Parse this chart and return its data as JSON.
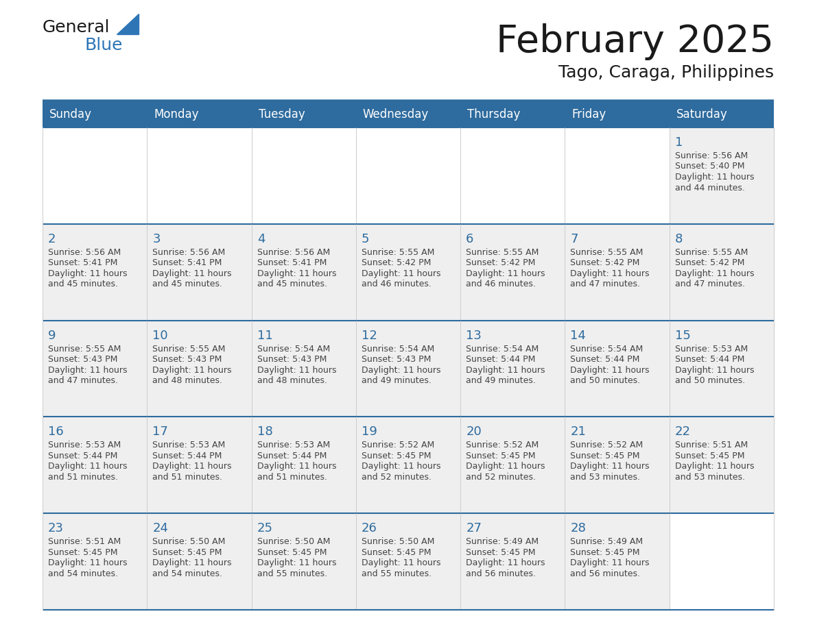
{
  "title": "February 2025",
  "subtitle": "Tago, Caraga, Philippines",
  "header_color": "#2e6b9e",
  "header_text_color": "#ffffff",
  "cell_bg": "#efefef",
  "empty_bottom_bg": "#ffffff",
  "row_border_color": "#2e6b9e",
  "col_border_color": "#cccccc",
  "day_headers": [
    "Sunday",
    "Monday",
    "Tuesday",
    "Wednesday",
    "Thursday",
    "Friday",
    "Saturday"
  ],
  "title_color": "#1a1a1a",
  "subtitle_color": "#1a1a1a",
  "day_number_color": "#2e6b9e",
  "info_text_color": "#444444",
  "logo_general_color": "#1a1a1a",
  "logo_blue_color": "#2e75b6",
  "weeks": [
    [
      {
        "day": null,
        "sunrise": null,
        "sunset": null,
        "daylight": null
      },
      {
        "day": null,
        "sunrise": null,
        "sunset": null,
        "daylight": null
      },
      {
        "day": null,
        "sunrise": null,
        "sunset": null,
        "daylight": null
      },
      {
        "day": null,
        "sunrise": null,
        "sunset": null,
        "daylight": null
      },
      {
        "day": null,
        "sunrise": null,
        "sunset": null,
        "daylight": null
      },
      {
        "day": null,
        "sunrise": null,
        "sunset": null,
        "daylight": null
      },
      {
        "day": 1,
        "sunrise": "5:56 AM",
        "sunset": "5:40 PM",
        "daylight": "11 hours and 44 minutes."
      }
    ],
    [
      {
        "day": 2,
        "sunrise": "5:56 AM",
        "sunset": "5:41 PM",
        "daylight": "11 hours and 45 minutes."
      },
      {
        "day": 3,
        "sunrise": "5:56 AM",
        "sunset": "5:41 PM",
        "daylight": "11 hours and 45 minutes."
      },
      {
        "day": 4,
        "sunrise": "5:56 AM",
        "sunset": "5:41 PM",
        "daylight": "11 hours and 45 minutes."
      },
      {
        "day": 5,
        "sunrise": "5:55 AM",
        "sunset": "5:42 PM",
        "daylight": "11 hours and 46 minutes."
      },
      {
        "day": 6,
        "sunrise": "5:55 AM",
        "sunset": "5:42 PM",
        "daylight": "11 hours and 46 minutes."
      },
      {
        "day": 7,
        "sunrise": "5:55 AM",
        "sunset": "5:42 PM",
        "daylight": "11 hours and 47 minutes."
      },
      {
        "day": 8,
        "sunrise": "5:55 AM",
        "sunset": "5:42 PM",
        "daylight": "11 hours and 47 minutes."
      }
    ],
    [
      {
        "day": 9,
        "sunrise": "5:55 AM",
        "sunset": "5:43 PM",
        "daylight": "11 hours and 47 minutes."
      },
      {
        "day": 10,
        "sunrise": "5:55 AM",
        "sunset": "5:43 PM",
        "daylight": "11 hours and 48 minutes."
      },
      {
        "day": 11,
        "sunrise": "5:54 AM",
        "sunset": "5:43 PM",
        "daylight": "11 hours and 48 minutes."
      },
      {
        "day": 12,
        "sunrise": "5:54 AM",
        "sunset": "5:43 PM",
        "daylight": "11 hours and 49 minutes."
      },
      {
        "day": 13,
        "sunrise": "5:54 AM",
        "sunset": "5:44 PM",
        "daylight": "11 hours and 49 minutes."
      },
      {
        "day": 14,
        "sunrise": "5:54 AM",
        "sunset": "5:44 PM",
        "daylight": "11 hours and 50 minutes."
      },
      {
        "day": 15,
        "sunrise": "5:53 AM",
        "sunset": "5:44 PM",
        "daylight": "11 hours and 50 minutes."
      }
    ],
    [
      {
        "day": 16,
        "sunrise": "5:53 AM",
        "sunset": "5:44 PM",
        "daylight": "11 hours and 51 minutes."
      },
      {
        "day": 17,
        "sunrise": "5:53 AM",
        "sunset": "5:44 PM",
        "daylight": "11 hours and 51 minutes."
      },
      {
        "day": 18,
        "sunrise": "5:53 AM",
        "sunset": "5:44 PM",
        "daylight": "11 hours and 51 minutes."
      },
      {
        "day": 19,
        "sunrise": "5:52 AM",
        "sunset": "5:45 PM",
        "daylight": "11 hours and 52 minutes."
      },
      {
        "day": 20,
        "sunrise": "5:52 AM",
        "sunset": "5:45 PM",
        "daylight": "11 hours and 52 minutes."
      },
      {
        "day": 21,
        "sunrise": "5:52 AM",
        "sunset": "5:45 PM",
        "daylight": "11 hours and 53 minutes."
      },
      {
        "day": 22,
        "sunrise": "5:51 AM",
        "sunset": "5:45 PM",
        "daylight": "11 hours and 53 minutes."
      }
    ],
    [
      {
        "day": 23,
        "sunrise": "5:51 AM",
        "sunset": "5:45 PM",
        "daylight": "11 hours and 54 minutes."
      },
      {
        "day": 24,
        "sunrise": "5:50 AM",
        "sunset": "5:45 PM",
        "daylight": "11 hours and 54 minutes."
      },
      {
        "day": 25,
        "sunrise": "5:50 AM",
        "sunset": "5:45 PM",
        "daylight": "11 hours and 55 minutes."
      },
      {
        "day": 26,
        "sunrise": "5:50 AM",
        "sunset": "5:45 PM",
        "daylight": "11 hours and 55 minutes."
      },
      {
        "day": 27,
        "sunrise": "5:49 AM",
        "sunset": "5:45 PM",
        "daylight": "11 hours and 56 minutes."
      },
      {
        "day": 28,
        "sunrise": "5:49 AM",
        "sunset": "5:45 PM",
        "daylight": "11 hours and 56 minutes."
      },
      {
        "day": null,
        "sunrise": null,
        "sunset": null,
        "daylight": null
      }
    ]
  ]
}
